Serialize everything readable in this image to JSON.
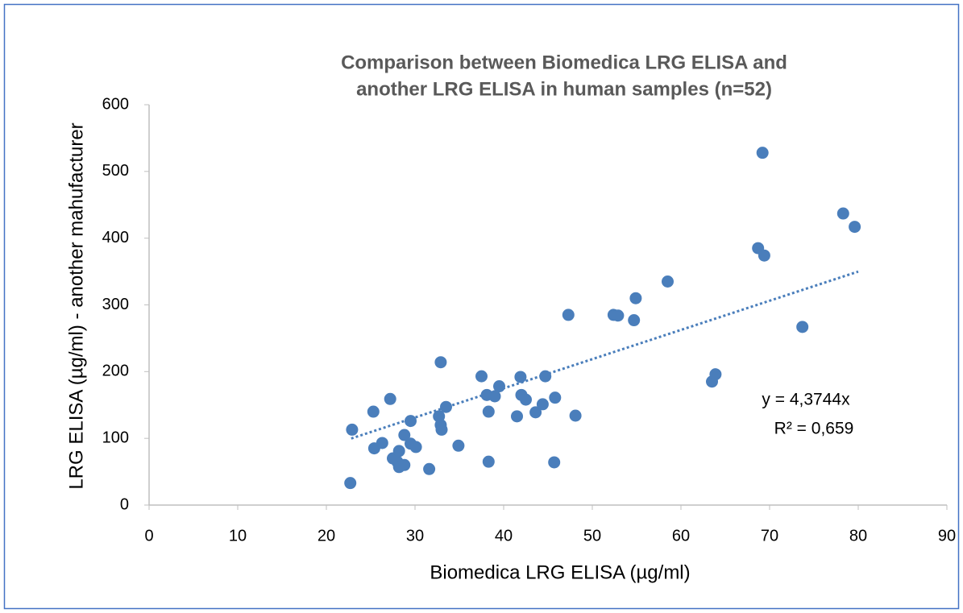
{
  "chart_data": {
    "type": "scatter",
    "title": [
      "Comparison between Biomedica LRG ELISA and",
      "another LRG ELISA in human samples (n=52)"
    ],
    "x_label": "Biomedica LRG ELISA (µg/ml)",
    "y_label": "LRG ELISA  (µg/ml) - another mahufacturer",
    "annotations": [
      "y = 4,3744x",
      "R² = 0,659"
    ],
    "xlim": [
      0,
      90
    ],
    "xticks": [
      0,
      10,
      20,
      30,
      40,
      50,
      60,
      70,
      80,
      90
    ],
    "ylim": [
      0,
      600
    ],
    "yticks": [
      0,
      100,
      200,
      300,
      400,
      500,
      600
    ],
    "grid": false,
    "series": [
      {
        "color": "#4a7ebb",
        "x": [
          22.7,
          22.9,
          25.3,
          25.4,
          26.3,
          27.2,
          27.5,
          28.0,
          28.2,
          28.2,
          28.8,
          28.8,
          29.5,
          29.5,
          30.1,
          31.6,
          32.7,
          32.9,
          33.0,
          32.9,
          33.5,
          34.9,
          37.5,
          38.1,
          38.3,
          38.3,
          39.0,
          39.5,
          41.5,
          41.9,
          42.0,
          42.5,
          43.6,
          44.4,
          44.7,
          45.7,
          45.8,
          47.3,
          48.1,
          52.4,
          52.9,
          54.7,
          54.9,
          58.5,
          63.5,
          63.9,
          68.7,
          69.2,
          69.4,
          73.7,
          78.3,
          79.6
        ],
        "values": [
          33,
          113,
          140,
          85,
          93,
          159,
          70,
          65,
          81,
          57,
          60,
          105,
          92,
          126,
          87,
          54,
          133,
          120,
          113,
          214,
          147,
          89,
          193,
          165,
          140,
          65,
          163,
          178,
          133,
          192,
          165,
          158,
          139,
          151,
          193,
          64,
          161,
          285,
          134,
          285,
          284,
          277,
          310,
          335,
          185,
          196,
          385,
          528,
          374,
          267,
          437,
          417
        ]
      }
    ],
    "trendline": {
      "slope": 4.3744,
      "x": [
        22.8,
        80
      ],
      "color": "#4a7ebb"
    }
  }
}
